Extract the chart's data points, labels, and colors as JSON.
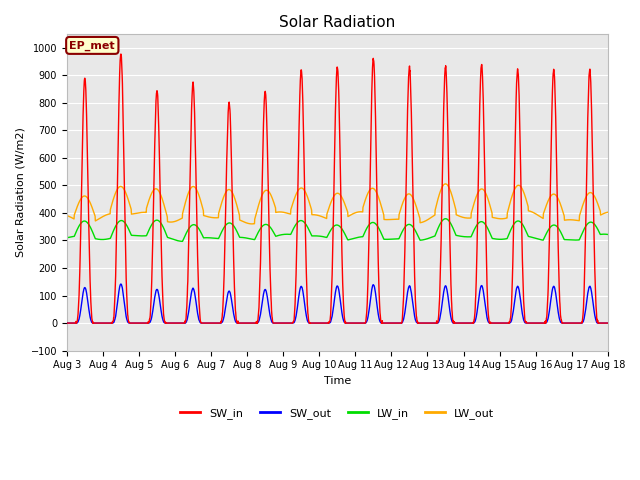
{
  "title": "Solar Radiation",
  "xlabel": "Time",
  "ylabel": "Solar Radiation (W/m2)",
  "ylim": [
    -100,
    1050
  ],
  "xlim": [
    0,
    15
  ],
  "bg_color": "#e8e8e8",
  "annotation_text": "EP_met",
  "annotation_bg": "#ffffcc",
  "annotation_border": "#8b0000",
  "series": {
    "SW_in": {
      "color": "#ff0000",
      "lw": 1.0
    },
    "SW_out": {
      "color": "#0000ff",
      "lw": 1.0
    },
    "LW_in": {
      "color": "#00dd00",
      "lw": 1.0
    },
    "LW_out": {
      "color": "#ffaa00",
      "lw": 1.0
    }
  },
  "x_tick_labels": [
    "Aug 3",
    "Aug 4",
    "Aug 5",
    "Aug 6",
    "Aug 7",
    "Aug 8",
    "Aug 9",
    "Aug 10",
    "Aug 11",
    "Aug 12",
    "Aug 13",
    "Aug 14",
    "Aug 15",
    "Aug 16",
    "Aug 17",
    "Aug 18"
  ],
  "legend_labels": [
    "SW_in",
    "SW_out",
    "LW_in",
    "LW_out"
  ],
  "legend_colors": [
    "#ff0000",
    "#0000ff",
    "#00dd00",
    "#ffaa00"
  ],
  "SW_in_peaks": [
    890,
    980,
    845,
    870,
    800,
    840,
    920,
    930,
    960,
    930,
    930,
    940,
    920,
    920,
    920
  ],
  "SW_out_ratio": 0.145,
  "LW_in_base": 310,
  "LW_in_amp": 55,
  "LW_out_base": 400,
  "LW_out_amp": 85,
  "title_fontsize": 11,
  "axis_fontsize": 8,
  "tick_fontsize": 7
}
